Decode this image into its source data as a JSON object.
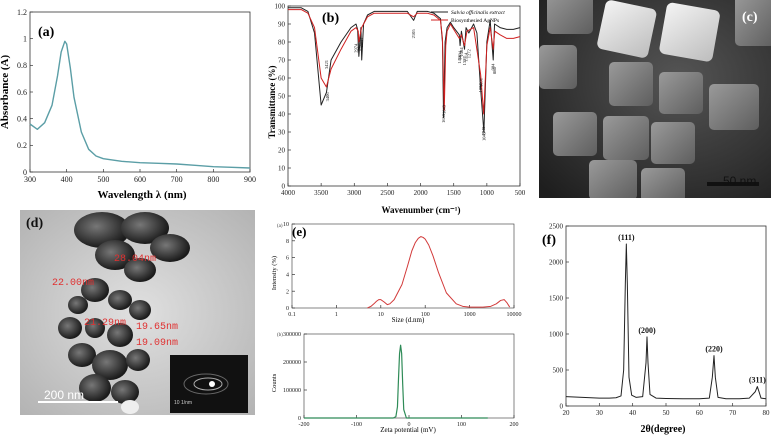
{
  "panel_labels": {
    "a": "(a)",
    "b": "(b)",
    "c": "(c)",
    "d": "(d)",
    "e": "(e)",
    "f": "(f)"
  },
  "colors": {
    "uv_line": "#5b9ea6",
    "ftir_extract": "#222222",
    "ftir_agnp": "#d02020",
    "dls_line": "#d23a3a",
    "zeta_line": "#2e8b57",
    "axis": "#333333",
    "tem_text": "#e03030"
  },
  "sem": {
    "scale_label": "50 nm"
  },
  "tem": {
    "labels": [
      "28.04nm",
      "22.00nm",
      "21.29nm",
      "19.65nm",
      "19.09nm"
    ],
    "scale_label": "200 nm",
    "inset_scale": "10 1/nm"
  },
  "chart_data": [
    {
      "id": "a",
      "type": "line",
      "xlabel": "Wavelength λ (nm)",
      "ylabel": "Absorbance (A)",
      "xlim": [
        300,
        900
      ],
      "ylim": [
        0,
        1.2
      ],
      "xticks": [
        300,
        400,
        500,
        600,
        700,
        800,
        900
      ],
      "yticks": [
        0,
        0.2,
        0.4,
        0.6,
        0.8,
        1.0,
        1.2
      ],
      "ytick_labels": [
        "0",
        "0.2",
        "0.4",
        "0.6",
        "0.8",
        "1",
        "1.2"
      ],
      "x": [
        300,
        320,
        340,
        360,
        375,
        385,
        395,
        400,
        410,
        420,
        440,
        460,
        480,
        500,
        550,
        600,
        650,
        700,
        750,
        800,
        850,
        900
      ],
      "y": [
        0.36,
        0.32,
        0.37,
        0.5,
        0.72,
        0.9,
        0.98,
        0.96,
        0.78,
        0.56,
        0.3,
        0.17,
        0.12,
        0.1,
        0.08,
        0.07,
        0.065,
        0.06,
        0.05,
        0.04,
        0.035,
        0.03
      ]
    },
    {
      "id": "b",
      "type": "line",
      "xlabel": "Wavenumber (cm⁻¹)",
      "ylabel": "Transmittance (%)",
      "xlim": [
        4000,
        500
      ],
      "ylim": [
        0,
        100
      ],
      "xticks": [
        4000,
        3500,
        3000,
        2500,
        2000,
        1500,
        1000,
        500
      ],
      "yticks": [
        0,
        10,
        20,
        30,
        40,
        50,
        60,
        70,
        80,
        90,
        100
      ],
      "annotations": [
        "3421",
        "3406",
        "2974",
        "2931",
        "2888",
        "2105",
        "1643",
        "1653",
        "1416",
        "1404",
        "1384",
        "1337",
        "1314",
        "1272",
        "1094",
        "1091",
        "1045",
        "1048",
        "884",
        "904"
      ],
      "series": [
        {
          "name": "Salvia officinalis extract",
          "x": [
            4000,
            3800,
            3700,
            3600,
            3500,
            3420,
            3350,
            3200,
            3050,
            2974,
            2950,
            2931,
            2900,
            2888,
            2860,
            2800,
            2700,
            2400,
            2200,
            2105,
            2050,
            1900,
            1800,
            1700,
            1670,
            1653,
            1630,
            1600,
            1550,
            1500,
            1416,
            1404,
            1384,
            1337,
            1314,
            1272,
            1200,
            1150,
            1094,
            1045,
            1000,
            950,
            904,
            884,
            800,
            700,
            600,
            500
          ],
          "y": [
            99,
            99,
            97,
            85,
            45,
            52,
            70,
            80,
            88,
            90,
            87,
            72,
            88,
            70,
            90,
            95,
            97,
            97,
            97,
            92,
            97,
            97,
            96,
            93,
            80,
            38,
            80,
            88,
            91,
            88,
            84,
            78,
            86,
            76,
            88,
            85,
            90,
            85,
            54,
            30,
            80,
            92,
            70,
            90,
            88,
            87,
            87,
            88
          ]
        },
        {
          "name": "Biosynthesied AgNPs",
          "x": [
            4000,
            3800,
            3700,
            3600,
            3500,
            3421,
            3350,
            3200,
            3050,
            2974,
            2940,
            2931,
            2890,
            2800,
            2700,
            2400,
            2200,
            2105,
            2050,
            1900,
            1800,
            1700,
            1670,
            1643,
            1620,
            1600,
            1550,
            1500,
            1416,
            1384,
            1337,
            1300,
            1200,
            1094,
            1048,
            1000,
            950,
            904,
            880,
            800,
            700,
            600,
            500
          ],
          "y": [
            98,
            98,
            96,
            88,
            60,
            55,
            65,
            76,
            86,
            88,
            86,
            80,
            88,
            94,
            96,
            96,
            96,
            94,
            96,
            96,
            95,
            92,
            82,
            42,
            78,
            86,
            90,
            87,
            82,
            84,
            78,
            86,
            88,
            62,
            40,
            78,
            88,
            76,
            86,
            84,
            82,
            82,
            83
          ]
        }
      ]
    },
    {
      "id": "e_dls",
      "type": "line",
      "xlabel": "Size (d.nm)",
      "ylabel": "Intensity (%)",
      "xscale": "log",
      "xlim": [
        0.1,
        10000
      ],
      "ylim": [
        0,
        10
      ],
      "xticks": [
        0.1,
        1,
        10,
        100,
        1000,
        10000
      ],
      "xtick_labels": [
        "0.1",
        "1",
        "10",
        "100",
        "1000",
        "10000"
      ],
      "yticks": [
        0,
        2,
        4,
        6,
        8,
        10
      ],
      "x": [
        5,
        6,
        7,
        8,
        9,
        10,
        12,
        14,
        16,
        20,
        30,
        40,
        50,
        60,
        70,
        80,
        90,
        100,
        120,
        150,
        200,
        300,
        500,
        700,
        1000,
        2000,
        3000,
        4000,
        5000,
        6000,
        7000,
        8000
      ],
      "y": [
        0,
        0.2,
        0.5,
        0.8,
        1.0,
        1.0,
        0.7,
        0.4,
        0.5,
        1.0,
        2.8,
        5.0,
        6.8,
        7.8,
        8.3,
        8.5,
        8.4,
        8.2,
        7.5,
        6.2,
        4.2,
        1.8,
        0.5,
        0.2,
        0.1,
        0.1,
        0.2,
        0.5,
        0.9,
        1.0,
        0.6,
        0.1
      ]
    },
    {
      "id": "e_zeta",
      "type": "line",
      "xlabel": "Zeta potential (mV)",
      "ylabel": "Counts",
      "xlim": [
        -200,
        200
      ],
      "ylim": [
        0,
        300000
      ],
      "xticks": [
        -200,
        -100,
        0,
        100,
        200
      ],
      "yticks": [
        0,
        100000,
        200000,
        300000
      ],
      "x": [
        -200,
        -100,
        -40,
        -30,
        -25,
        -22,
        -20,
        -18,
        -16,
        -14,
        -12,
        -10,
        -5,
        0,
        50,
        100,
        150
      ],
      "y": [
        0,
        0,
        0,
        0,
        5000,
        40000,
        140000,
        230000,
        260000,
        230000,
        120000,
        30000,
        0,
        0,
        0,
        0,
        0
      ]
    },
    {
      "id": "f",
      "type": "line",
      "xlabel": "2θ(degree)",
      "ylabel": "",
      "xlim": [
        20,
        80
      ],
      "ylim": [
        0,
        2500
      ],
      "xticks": [
        20,
        30,
        40,
        50,
        60,
        70,
        80
      ],
      "yticks": [
        0,
        500,
        1000,
        1500,
        2000,
        2500
      ],
      "annotations": [
        {
          "text": "(111)",
          "x": 38.1,
          "y": 2250
        },
        {
          "text": "(200)",
          "x": 44.3,
          "y": 960
        },
        {
          "text": "(220)",
          "x": 64.4,
          "y": 700
        },
        {
          "text": "(311)",
          "x": 77.4,
          "y": 270
        }
      ],
      "x": [
        20,
        25,
        30,
        33,
        35,
        36.5,
        37.3,
        37.8,
        38.1,
        38.4,
        38.9,
        39.7,
        41,
        43,
        44.0,
        44.3,
        44.6,
        45.2,
        47,
        50,
        55,
        60,
        63,
        63.9,
        64.4,
        64.8,
        65.6,
        68,
        72,
        75,
        76.8,
        77.4,
        77.9,
        78.5,
        80
      ],
      "y": [
        130,
        120,
        110,
        110,
        115,
        140,
        500,
        1700,
        2250,
        1700,
        400,
        150,
        120,
        130,
        600,
        960,
        600,
        160,
        110,
        105,
        100,
        100,
        110,
        400,
        700,
        400,
        120,
        100,
        100,
        110,
        200,
        270,
        200,
        110,
        100
      ]
    }
  ]
}
